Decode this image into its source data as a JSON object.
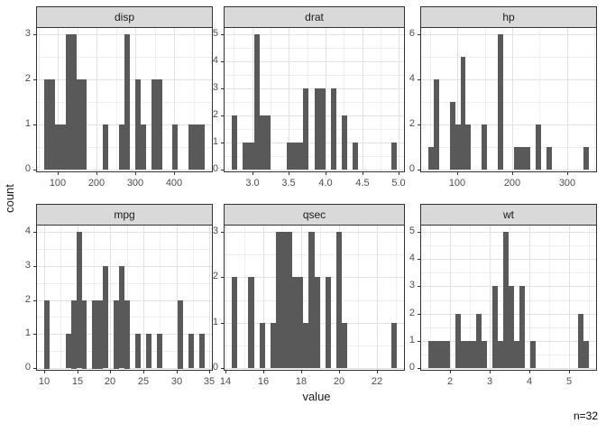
{
  "chart_data": {
    "type": "histogram",
    "dataset_note": "n=32",
    "xlabel": "value",
    "ylabel": "count",
    "note": "n=32",
    "n": 32,
    "legend": "none",
    "grid": "on",
    "colors": {
      "bar_fill": "#595959",
      "strip_bg": "#d9d9d9",
      "border": "#333333",
      "grid_major": "#e2e2e2",
      "grid_minor": "#efefef",
      "axis_text": "#4d4d4d",
      "title_text": "#1a1a1a"
    },
    "facets": [
      {
        "label": "disp",
        "xlim": [
          43.4,
          499.7
        ],
        "x_ticks": [
          [
            100,
            "100"
          ],
          [
            200,
            "200"
          ],
          [
            300,
            "300"
          ],
          [
            400,
            "400"
          ]
        ],
        "x_minor": [
          50,
          150,
          250,
          350,
          450
        ],
        "y_ticks": [
          [
            0,
            "0"
          ],
          [
            1,
            "1"
          ],
          [
            2,
            "2"
          ],
          [
            3,
            "3"
          ]
        ],
        "y_minor": [
          0.5,
          1.5,
          2.5
        ],
        "bars": [
          [
            64.19,
            78.01,
            2
          ],
          [
            78.01,
            91.84,
            2
          ],
          [
            91.84,
            105.66,
            1
          ],
          [
            105.66,
            119.48,
            1
          ],
          [
            119.48,
            133.31,
            3
          ],
          [
            133.31,
            147.13,
            3
          ],
          [
            147.13,
            160.96,
            2
          ],
          [
            160.96,
            174.78,
            2
          ],
          [
            216.25,
            230.07,
            1
          ],
          [
            257.73,
            271.55,
            1
          ],
          [
            271.55,
            285.37,
            3
          ],
          [
            299.2,
            313.02,
            2
          ],
          [
            313.02,
            326.85,
            1
          ],
          [
            340.67,
            354.49,
            2
          ],
          [
            354.49,
            368.31,
            2
          ],
          [
            395.97,
            409.79,
            1
          ],
          [
            437.44,
            451.26,
            1
          ],
          [
            451.26,
            465.09,
            1
          ],
          [
            465.09,
            478.91,
            1
          ]
        ]
      },
      {
        "label": "drat",
        "xlim": [
          2.61,
          5.08
        ],
        "x_ticks": [
          [
            3.0,
            "3.0"
          ],
          [
            3.5,
            "3.5"
          ],
          [
            4.0,
            "4.0"
          ],
          [
            4.5,
            "4.5"
          ],
          [
            5.0,
            "5.0"
          ]
        ],
        "x_minor": [
          2.75,
          3.25,
          3.75,
          4.25,
          4.75
        ],
        "y_ticks": [
          [
            0,
            "0"
          ],
          [
            1,
            "1"
          ],
          [
            2,
            "2"
          ],
          [
            3,
            "3"
          ],
          [
            4,
            "4"
          ],
          [
            5,
            "5"
          ]
        ],
        "y_minor": [
          0.5,
          1.5,
          2.5,
          3.5,
          4.5
        ],
        "bars": [
          [
            2.723,
            2.797,
            2
          ],
          [
            2.872,
            2.947,
            1
          ],
          [
            2.947,
            3.022,
            1
          ],
          [
            3.022,
            3.097,
            5
          ],
          [
            3.097,
            3.172,
            2
          ],
          [
            3.172,
            3.246,
            2
          ],
          [
            3.471,
            3.546,
            1
          ],
          [
            3.546,
            3.621,
            1
          ],
          [
            3.621,
            3.695,
            1
          ],
          [
            3.695,
            3.77,
            3
          ],
          [
            3.845,
            3.92,
            3
          ],
          [
            3.92,
            3.995,
            3
          ],
          [
            4.07,
            4.144,
            3
          ],
          [
            4.219,
            4.294,
            2
          ],
          [
            4.369,
            4.444,
            1
          ],
          [
            4.893,
            4.967,
            1
          ]
        ]
      },
      {
        "label": "hp",
        "xlim": [
          32.5,
          354.5
        ],
        "x_ticks": [
          [
            100,
            "100"
          ],
          [
            200,
            "200"
          ],
          [
            300,
            "300"
          ]
        ],
        "x_minor": [
          50,
          150,
          250,
          350
        ],
        "y_ticks": [
          [
            0,
            "0"
          ],
          [
            2,
            "2"
          ],
          [
            4,
            "4"
          ],
          [
            6,
            "6"
          ]
        ],
        "y_minor": [
          1,
          3,
          5
        ],
        "bars": [
          [
            47.12,
            56.88,
            1
          ],
          [
            56.88,
            66.64,
            4
          ],
          [
            86.16,
            95.91,
            3
          ],
          [
            95.91,
            105.67,
            2
          ],
          [
            105.67,
            115.43,
            5
          ],
          [
            115.43,
            125.19,
            2
          ],
          [
            144.71,
            154.47,
            2
          ],
          [
            173.98,
            183.74,
            6
          ],
          [
            203.26,
            213.02,
            1
          ],
          [
            213.02,
            222.78,
            1
          ],
          [
            222.78,
            232.53,
            1
          ],
          [
            242.29,
            252.05,
            2
          ],
          [
            261.81,
            271.57,
            1
          ],
          [
            330.12,
            339.88,
            1
          ]
        ]
      },
      {
        "label": "mpg",
        "xlim": [
          8.78,
          35.52
        ],
        "x_ticks": [
          [
            10,
            "10"
          ],
          [
            15,
            "15"
          ],
          [
            20,
            "20"
          ],
          [
            25,
            "25"
          ],
          [
            30,
            "30"
          ],
          [
            35,
            "35"
          ]
        ],
        "x_minor": [
          12.5,
          17.5,
          22.5,
          27.5,
          32.5
        ],
        "y_ticks": [
          [
            0,
            "0"
          ],
          [
            1,
            "1"
          ],
          [
            2,
            "2"
          ],
          [
            3,
            "3"
          ],
          [
            4,
            "4"
          ]
        ],
        "y_minor": [
          0.5,
          1.5,
          2.5,
          3.5
        ],
        "bars": [
          [
            9.99,
            10.81,
            2
          ],
          [
            13.24,
            14.05,
            1
          ],
          [
            14.05,
            14.86,
            2
          ],
          [
            14.86,
            15.67,
            4
          ],
          [
            15.67,
            16.48,
            2
          ],
          [
            17.29,
            18.1,
            2
          ],
          [
            18.1,
            18.91,
            2
          ],
          [
            18.91,
            19.72,
            3
          ],
          [
            20.53,
            21.34,
            2
          ],
          [
            21.34,
            22.15,
            3
          ],
          [
            22.15,
            22.96,
            2
          ],
          [
            23.77,
            24.58,
            1
          ],
          [
            25.39,
            26.2,
            1
          ],
          [
            27.01,
            27.82,
            1
          ],
          [
            30.25,
            31.06,
            2
          ],
          [
            31.87,
            32.68,
            1
          ],
          [
            33.49,
            34.31,
            1
          ]
        ]
      },
      {
        "label": "qsec",
        "xlim": [
          13.92,
          23.48
        ],
        "x_ticks": [
          [
            14,
            "14"
          ],
          [
            16,
            "16"
          ],
          [
            18,
            "18"
          ],
          [
            20,
            "20"
          ],
          [
            22,
            "22"
          ]
        ],
        "x_minor": [
          15,
          17,
          19,
          21,
          23
        ],
        "y_ticks": [
          [
            0,
            "0"
          ],
          [
            1,
            "1"
          ],
          [
            2,
            "2"
          ],
          [
            3,
            "3"
          ]
        ],
        "y_minor": [
          0.5,
          1.5,
          2.5
        ],
        "bars": [
          [
            14.355,
            14.645,
            2
          ],
          [
            15.224,
            15.514,
            2
          ],
          [
            15.803,
            16.093,
            1
          ],
          [
            16.383,
            16.672,
            1
          ],
          [
            16.672,
            16.962,
            3
          ],
          [
            16.962,
            17.252,
            3
          ],
          [
            17.252,
            17.541,
            3
          ],
          [
            17.541,
            17.831,
            2
          ],
          [
            17.831,
            18.121,
            2
          ],
          [
            18.121,
            18.41,
            1
          ],
          [
            18.41,
            18.7,
            3
          ],
          [
            18.7,
            18.99,
            2
          ],
          [
            19.279,
            19.569,
            2
          ],
          [
            19.859,
            20.148,
            3
          ],
          [
            20.148,
            20.438,
            1
          ],
          [
            22.755,
            23.045,
            1
          ]
        ]
      },
      {
        "label": "wt",
        "xlim": [
          1.243,
          5.694
        ],
        "x_ticks": [
          [
            2,
            "2"
          ],
          [
            3,
            "3"
          ],
          [
            4,
            "4"
          ],
          [
            5,
            "5"
          ]
        ],
        "x_minor": [
          1.5,
          2.5,
          3.5,
          4.5,
          5.5
        ],
        "y_ticks": [
          [
            0,
            "0"
          ],
          [
            1,
            "1"
          ],
          [
            2,
            "2"
          ],
          [
            3,
            "3"
          ],
          [
            4,
            "4"
          ],
          [
            5,
            "5"
          ]
        ],
        "y_minor": [
          0.5,
          1.5,
          2.5,
          3.5,
          4.5
        ],
        "bars": [
          [
            1.446,
            1.58,
            1
          ],
          [
            1.58,
            1.715,
            1
          ],
          [
            1.715,
            1.85,
            1
          ],
          [
            1.85,
            1.985,
            1
          ],
          [
            2.12,
            2.255,
            2
          ],
          [
            2.255,
            2.39,
            1
          ],
          [
            2.39,
            2.524,
            1
          ],
          [
            2.524,
            2.659,
            1
          ],
          [
            2.659,
            2.794,
            2
          ],
          [
            2.794,
            2.929,
            1
          ],
          [
            3.064,
            3.199,
            3
          ],
          [
            3.199,
            3.334,
            1
          ],
          [
            3.334,
            3.468,
            5
          ],
          [
            3.468,
            3.603,
            3
          ],
          [
            3.603,
            3.738,
            1
          ],
          [
            3.738,
            3.873,
            3
          ],
          [
            4.008,
            4.143,
            1
          ],
          [
            5.222,
            5.357,
            2
          ],
          [
            5.357,
            5.491,
            1
          ]
        ]
      }
    ]
  }
}
